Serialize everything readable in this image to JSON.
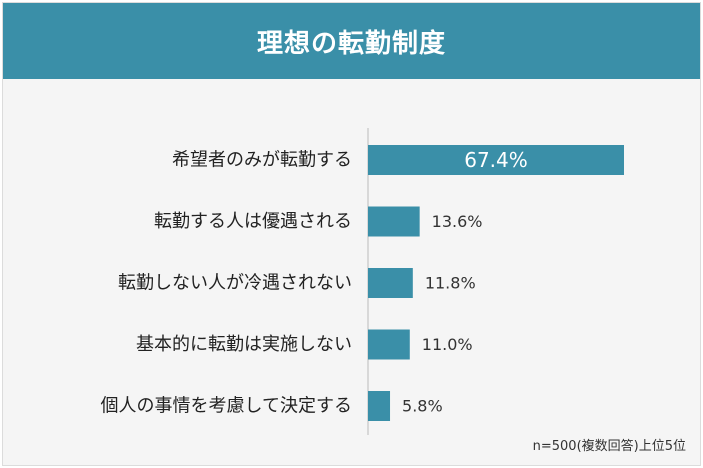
{
  "title": "理想の転勤制度",
  "note": "n=500(複数回答)上位5位",
  "colors": {
    "header": "#3a8fa8",
    "bar": "#3a8fa8",
    "axis": "#bbbbbb"
  },
  "chart_data": {
    "type": "bar",
    "orientation": "horizontal",
    "title": "理想の転勤制度",
    "categories": [
      "希望者のみが転勤する",
      "転勤する人は優遇される",
      "転勤しない人が冷遇されない",
      "基本的に転勤は実施しない",
      "個人の事情を考慮して決定する"
    ],
    "values": [
      67.4,
      13.6,
      11.8,
      11.0,
      5.8
    ],
    "value_labels": [
      "67.4%",
      "13.6%",
      "11.8%",
      "11.0%",
      "5.8%"
    ],
    "xlim": [
      0,
      67.4
    ],
    "grid": false,
    "legend": "none"
  }
}
